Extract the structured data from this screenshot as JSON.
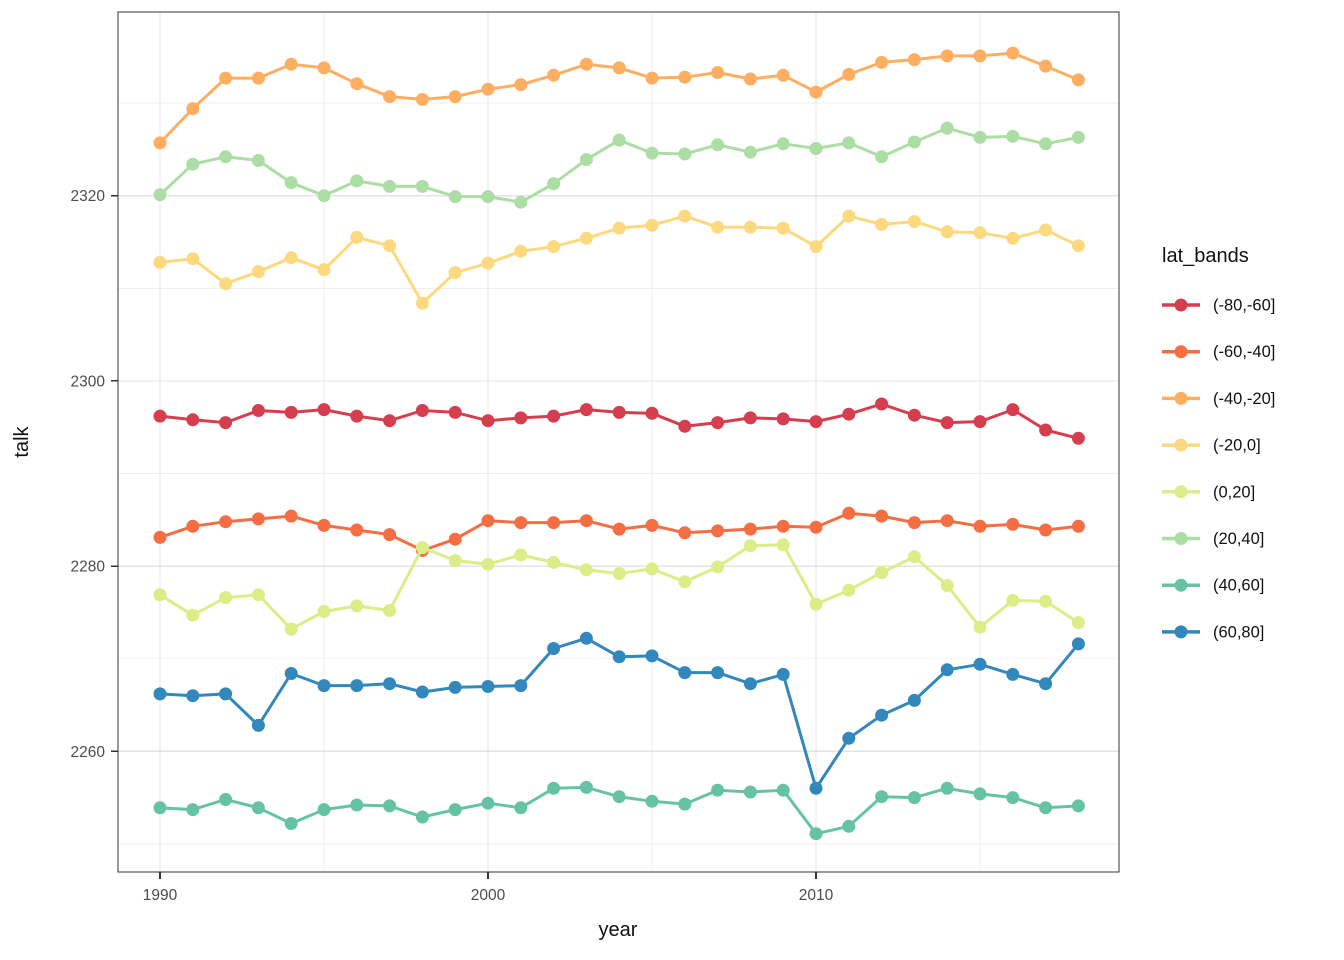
{
  "chart_data": {
    "type": "line",
    "title": "",
    "xlabel": "year",
    "ylabel": "talk",
    "legend_title": "lat_bands",
    "legend_position": "right",
    "grid": true,
    "marker": "circle-on-line",
    "x": [
      1990,
      1991,
      1992,
      1993,
      1994,
      1995,
      1996,
      1997,
      1998,
      1999,
      2000,
      2001,
      2002,
      2003,
      2004,
      2005,
      2006,
      2007,
      2008,
      2009,
      2010,
      2011,
      2012,
      2013,
      2014,
      2015,
      2016,
      2017,
      2018
    ],
    "x_major_ticks": [
      1990,
      2000,
      2010
    ],
    "x_minor_gridlines": [
      1995,
      2005,
      2015
    ],
    "y_major_ticks": [
      2260,
      2280,
      2300,
      2320
    ],
    "y_minor_gridlines": [
      2250,
      2270,
      2290,
      2310,
      2330
    ],
    "xlim": [
      1988.7,
      2019.3
    ],
    "ylim": [
      2246.9,
      2339.8
    ],
    "series": [
      {
        "name": "(-80,-60]",
        "color": "#d53e4f",
        "values": [
          2296.2,
          2295.8,
          2295.5,
          2296.8,
          2296.6,
          2296.9,
          2296.2,
          2295.7,
          2296.8,
          2296.6,
          2295.7,
          2296.0,
          2296.2,
          2296.9,
          2296.6,
          2296.5,
          2295.1,
          2295.5,
          2296.0,
          2295.9,
          2295.6,
          2296.4,
          2297.5,
          2296.3,
          2295.5,
          2295.6,
          2296.9,
          2294.7,
          2293.8
        ]
      },
      {
        "name": "(-60,-40]",
        "color": "#f46d43",
        "values": [
          2283.1,
          2284.3,
          2284.8,
          2285.1,
          2285.4,
          2284.4,
          2283.9,
          2283.4,
          2281.7,
          2282.9,
          2284.9,
          2284.7,
          2284.7,
          2284.9,
          2284.0,
          2284.4,
          2283.6,
          2283.8,
          2284.0,
          2284.3,
          2284.2,
          2285.7,
          2285.4,
          2284.7,
          2284.9,
          2284.3,
          2284.5,
          2283.9,
          2284.3
        ]
      },
      {
        "name": "(-40,-20]",
        "color": "#fdae61",
        "values": [
          2325.7,
          2329.4,
          2332.7,
          2332.7,
          2334.2,
          2333.8,
          2332.1,
          2330.7,
          2330.4,
          2330.7,
          2331.5,
          2332.0,
          2333.0,
          2334.2,
          2333.8,
          2332.7,
          2332.8,
          2333.3,
          2332.6,
          2333.0,
          2331.2,
          2333.1,
          2334.4,
          2334.7,
          2335.1,
          2335.1,
          2335.4,
          2334.0,
          2332.5
        ]
      },
      {
        "name": "(-20,0]",
        "color": "#fcd97f",
        "values": [
          2312.8,
          2313.2,
          2310.5,
          2311.8,
          2313.3,
          2312.0,
          2315.5,
          2314.6,
          2308.4,
          2311.7,
          2312.7,
          2314.0,
          2314.5,
          2315.4,
          2316.5,
          2316.8,
          2317.8,
          2316.6,
          2316.6,
          2316.5,
          2314.5,
          2317.8,
          2316.9,
          2317.2,
          2316.1,
          2316.0,
          2315.4,
          2316.3,
          2314.6
        ]
      },
      {
        "name": "(0,20]",
        "color": "#dcec87",
        "values": [
          2276.9,
          2274.7,
          2276.6,
          2276.9,
          2273.2,
          2275.1,
          2275.7,
          2275.2,
          2282.0,
          2280.6,
          2280.2,
          2281.2,
          2280.4,
          2279.6,
          2279.2,
          2279.7,
          2278.3,
          2279.9,
          2282.2,
          2282.3,
          2275.9,
          2277.4,
          2279.3,
          2281.0,
          2277.9,
          2273.4,
          2276.3,
          2276.2,
          2273.9
        ]
      },
      {
        "name": "(20,40]",
        "color": "#abdda4",
        "values": [
          2320.1,
          2323.4,
          2324.2,
          2323.8,
          2321.4,
          2320.0,
          2321.6,
          2321.0,
          2321.0,
          2319.9,
          2319.9,
          2319.3,
          2321.3,
          2323.9,
          2326.0,
          2324.6,
          2324.5,
          2325.5,
          2324.7,
          2325.6,
          2325.1,
          2325.7,
          2324.2,
          2325.8,
          2327.3,
          2326.3,
          2326.4,
          2325.6,
          2326.3
        ]
      },
      {
        "name": "(40,60]",
        "color": "#66c2a5",
        "values": [
          2253.9,
          2253.7,
          2254.8,
          2253.9,
          2252.2,
          2253.7,
          2254.2,
          2254.1,
          2252.9,
          2253.7,
          2254.4,
          2253.9,
          2256.0,
          2256.1,
          2255.1,
          2254.6,
          2254.3,
          2255.8,
          2255.6,
          2255.8,
          2251.1,
          2251.9,
          2255.1,
          2255.0,
          2256.0,
          2255.4,
          2255.0,
          2253.9,
          2254.1
        ]
      },
      {
        "name": "(60,80]",
        "color": "#3288bd",
        "values": [
          2266.2,
          2266.0,
          2266.2,
          2262.8,
          2268.4,
          2267.1,
          2267.1,
          2267.3,
          2266.4,
          2266.9,
          2267.0,
          2267.1,
          2271.1,
          2272.2,
          2270.2,
          2270.3,
          2268.5,
          2268.5,
          2267.3,
          2268.3,
          2256.0,
          2261.4,
          2263.9,
          2265.5,
          2268.8,
          2269.4,
          2268.3,
          2267.3,
          2271.6
        ]
      }
    ],
    "style": {
      "panel_border": "#333333",
      "grid_major": "#e4e4e4",
      "grid_minor": "#efefef",
      "tick_color": "#333333",
      "tick_label_color": "#4d4d4d",
      "background": "#ffffff"
    }
  }
}
